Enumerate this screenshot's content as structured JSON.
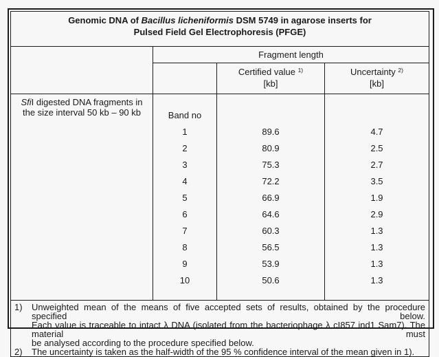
{
  "title": {
    "line1_prefix": "Genomic DNA of ",
    "line1_species": "Bacillus licheniformis",
    "line1_suffix": " DSM 5749 in agarose inserts for",
    "line2": "Pulsed Field Gel Electrophoresis (PFGE)"
  },
  "header": {
    "group": "Fragment length",
    "certified": {
      "label": "Certified value",
      "sup": "1)",
      "unit": "[kb]"
    },
    "uncertainty": {
      "label": "Uncertainty",
      "sup": "2)",
      "unit": "[kb]"
    }
  },
  "row_label": {
    "italic": "Sfi",
    "line1_rest": "I digested DNA fragments in",
    "line2": "the size interval 50 kb – 90 kb"
  },
  "band_header": "Band no",
  "table": {
    "columns": [
      "Band no",
      "Certified value [kb]",
      "Uncertainty [kb]"
    ],
    "rows": [
      {
        "band": "1",
        "certified": "89.6",
        "uncertainty": "4.7"
      },
      {
        "band": "2",
        "certified": "80.9",
        "uncertainty": "2.5"
      },
      {
        "band": "3",
        "certified": "75.3",
        "uncertainty": "2.7"
      },
      {
        "band": "4",
        "certified": "72.2",
        "uncertainty": "3.5"
      },
      {
        "band": "5",
        "certified": "66.9",
        "uncertainty": "1.9"
      },
      {
        "band": "6",
        "certified": "64.6",
        "uncertainty": "2.9"
      },
      {
        "band": "7",
        "certified": "60.3",
        "uncertainty": "1.3"
      },
      {
        "band": "8",
        "certified": "56.5",
        "uncertainty": "1.3"
      },
      {
        "band": "9",
        "certified": "53.9",
        "uncertainty": "1.3"
      },
      {
        "band": "10",
        "certified": "50.6",
        "uncertainty": "1.3"
      }
    ]
  },
  "footnotes": [
    {
      "marker": "1)",
      "lines": [
        "Unweighted mean of the means of five accepted sets of results, obtained by the procedure specified below.",
        "Each value is traceable to intact λ DNA (isolated from the bacteriophage λ cI857 ind1 Sam7). The material must",
        "be analysed according to the procedure specified below."
      ]
    },
    {
      "marker": "2)",
      "lines": [
        "The uncertainty is taken as the half-width of the 95 % confidence interval of the mean given in 1)."
      ]
    }
  ],
  "colors": {
    "border": "#1c1c1c",
    "text": "#1a1a1a",
    "background": "#f7f7f7"
  }
}
